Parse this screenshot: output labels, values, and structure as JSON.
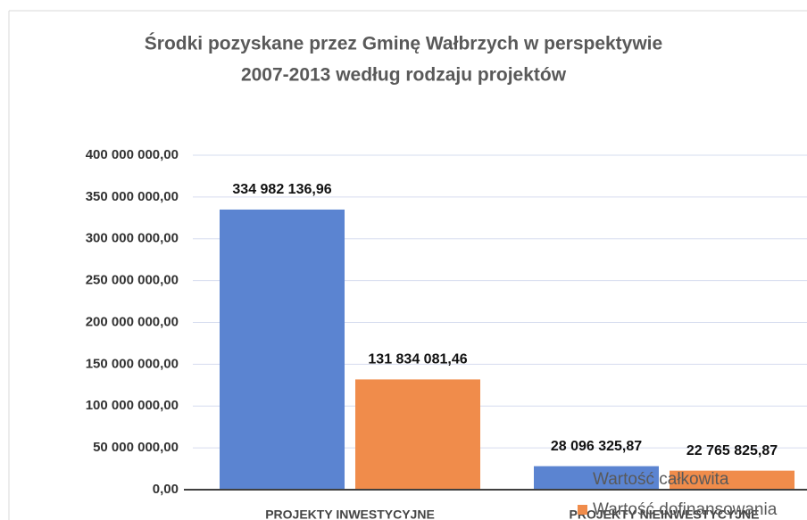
{
  "chart_data": {
    "type": "bar",
    "title": "Środki pozyskane przez Gminę Wałbrzych w perspektywie 2007-2013 według rodzaju projektów",
    "title_lines": [
      "Środki pozyskane przez Gminę Wałbrzych w perspektywie",
      "2007-2013 według rodzaju projektów"
    ],
    "categories": [
      "PROJEKTY INWESTYCYJNE",
      "PROJEKTY NIEINWESTYCYJNE"
    ],
    "series": [
      {
        "name": "Wartość całkowita",
        "color": "#5b84d1",
        "values": [
          334982136.96,
          28096325.87
        ],
        "value_labels": [
          "334 982 136,96",
          "28 096 325,87"
        ]
      },
      {
        "name": "Wartość dofinansowania",
        "color": "#f08c4b",
        "values": [
          131834081.46,
          22765825.87
        ],
        "value_labels": [
          "131 834 081,46",
          "22 765 825,87"
        ]
      }
    ],
    "ylim": [
      0,
      400000000
    ],
    "yticks": [
      {
        "value": 0,
        "label": "0,00"
      },
      {
        "value": 50000000,
        "label": "50 000 000,00"
      },
      {
        "value": 100000000,
        "label": "100 000 000,00"
      },
      {
        "value": 150000000,
        "label": "150 000 000,00"
      },
      {
        "value": 200000000,
        "label": "200 000 000,00"
      },
      {
        "value": 250000000,
        "label": "250 000 000,00"
      },
      {
        "value": 300000000,
        "label": "300 000 000,00"
      },
      {
        "value": 350000000,
        "label": "350 000 000,00"
      },
      {
        "value": 400000000,
        "label": "400 000 000,00"
      }
    ],
    "grid": true
  }
}
